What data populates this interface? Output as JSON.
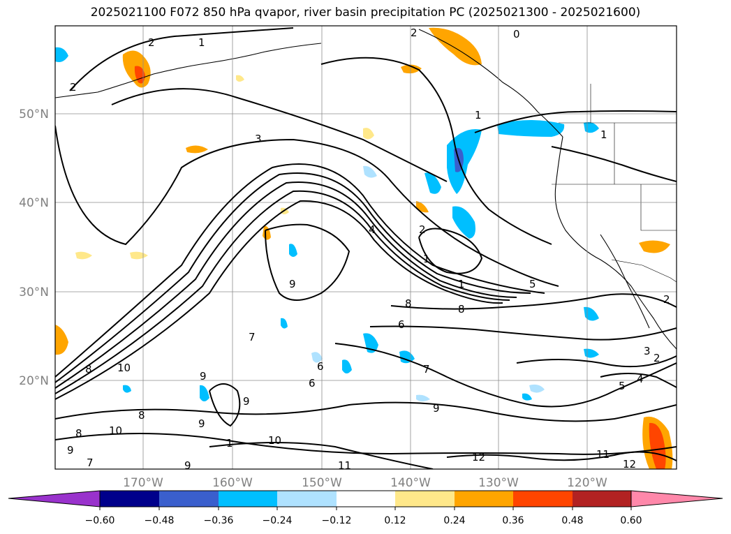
{
  "title": "2025021100 F072 850 hPa qvapor, river basin precipitation PC (2025021300 - 2025021600)",
  "lon_ticks": [
    "170°W",
    "160°W",
    "150°W",
    "140°W",
    "130°W",
    "120°W"
  ],
  "lat_ticks": [
    "50°N",
    "40°N",
    "30°N",
    "20°N"
  ],
  "contour_labels": [
    "0",
    "1",
    "2",
    "3",
    "4",
    "5",
    "6",
    "7",
    "8",
    "9",
    "10",
    "11",
    "12"
  ],
  "colorbar": {
    "tick_labels": [
      "−0.60",
      "−0.48",
      "−0.36",
      "−0.24",
      "−0.12",
      "0.12",
      "0.24",
      "0.36",
      "0.48",
      "0.60"
    ],
    "colors": [
      "#9932cc",
      "#00008b",
      "#3a5fcd",
      "#00bfff",
      "#afe2ff",
      "#ffffff",
      "#ffe88a",
      "#ffa500",
      "#ff4500",
      "#b22222",
      "#ff88aa"
    ]
  },
  "colors": {
    "contour": "#000000",
    "grid": "#8c8c8c",
    "tick_text": "#808080"
  }
}
